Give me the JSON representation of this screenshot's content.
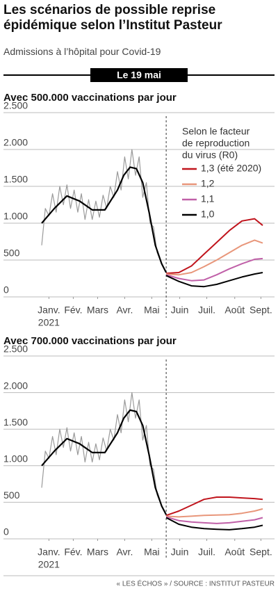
{
  "title": "Les scénarios de possible reprise épidémique selon l’Institut Pasteur",
  "subtitle": "Admissions à l’hôpital pour Covid-19",
  "banner": "Le 19 mai",
  "source": "« LES ÉCHOS » / SOURCE : INSTITUT PASTEUR",
  "chart_data": [
    {
      "type": "line",
      "title": "Avec 500.000 vaccinations par jour",
      "xlim": [
        0,
        245
      ],
      "ylim": [
        0,
        2500
      ],
      "yticks": [
        0,
        500,
        {
          "value": 1000,
          "label": "1.000"
        },
        {
          "value": 1500,
          "label": "1.500"
        },
        {
          "value": 2000,
          "label": "2.000"
        },
        {
          "value": 2500,
          "label": "2.500"
        }
      ],
      "xticks": [
        {
          "value": 8,
          "label": "Janv."
        },
        {
          "value": 35,
          "label": "Fév."
        },
        {
          "value": 62,
          "label": "Mars"
        },
        {
          "value": 92,
          "label": "Avr."
        },
        {
          "value": 122,
          "label": "Mai"
        },
        {
          "value": 153,
          "label": "Juin"
        },
        {
          "value": 183,
          "label": "Juil."
        },
        {
          "value": 214,
          "label": "Août"
        },
        {
          "value": 243,
          "label": "Sept."
        }
      ],
      "year": "2021",
      "marker_x": 138,
      "grid": true,
      "legend": true,
      "legend_title": [
        "Selon le facteur",
        "de reproduction",
        "du virus (R0)"
      ],
      "observed": [
        {
          "color": "#9a9a9a",
          "x": [
            0,
            4,
            8,
            12,
            16,
            20,
            24,
            28,
            32,
            36,
            40,
            44,
            48,
            52,
            56,
            60,
            64,
            68,
            72,
            76,
            80,
            84,
            88,
            92,
            96,
            100,
            104,
            108,
            112,
            116,
            120,
            124,
            128,
            132,
            136
          ],
          "values": [
            700,
            1200,
            1100,
            1400,
            1150,
            1500,
            1250,
            1520,
            1200,
            1450,
            1150,
            1400,
            1050,
            1320,
            1050,
            1300,
            1080,
            1380,
            1200,
            1500,
            1350,
            1700,
            1450,
            1900,
            1600,
            2000,
            1650,
            1900,
            1350,
            1550,
            1000,
            950,
            600,
            480,
            380
          ]
        },
        {
          "color": "#000000",
          "x": [
            0,
            14,
            28,
            42,
            56,
            70,
            84,
            91,
            98,
            105,
            112,
            119,
            126,
            133,
            138
          ],
          "values": [
            1000,
            1200,
            1370,
            1300,
            1180,
            1180,
            1450,
            1650,
            1760,
            1740,
            1550,
            1150,
            700,
            450,
            330
          ]
        }
      ],
      "series": [
        {
          "name": "1,3 (été 2020)",
          "color": "#c0141c",
          "x": [
            138,
            152,
            166,
            180,
            194,
            208,
            222,
            236,
            245
          ],
          "values": [
            320,
            330,
            420,
            580,
            740,
            900,
            1030,
            1060,
            970
          ]
        },
        {
          "name": "1,2",
          "color": "#e8967a",
          "x": [
            138,
            152,
            166,
            180,
            194,
            208,
            222,
            236,
            245
          ],
          "values": [
            310,
            300,
            330,
            410,
            500,
            600,
            700,
            770,
            730
          ]
        },
        {
          "name": "1,1",
          "color": "#c060a8",
          "x": [
            138,
            152,
            166,
            180,
            194,
            208,
            222,
            236,
            245
          ],
          "values": [
            300,
            250,
            220,
            230,
            300,
            380,
            450,
            510,
            520
          ]
        },
        {
          "name": "1,0",
          "color": "#000000",
          "x": [
            138,
            152,
            166,
            180,
            194,
            208,
            222,
            236,
            245
          ],
          "values": [
            290,
            210,
            150,
            140,
            170,
            220,
            270,
            310,
            330
          ]
        }
      ]
    },
    {
      "type": "line",
      "title": "Avec 700.000 vaccinations par jour",
      "xlim": [
        0,
        245
      ],
      "ylim": [
        0,
        2500
      ],
      "yticks": [
        0,
        500,
        {
          "value": 1000,
          "label": "1.000"
        },
        {
          "value": 1500,
          "label": "1.500"
        },
        {
          "value": 2000,
          "label": "2.000"
        },
        {
          "value": 2500,
          "label": "2.500"
        }
      ],
      "xticks": [
        {
          "value": 8,
          "label": "Janv."
        },
        {
          "value": 35,
          "label": "Fév."
        },
        {
          "value": 62,
          "label": "Mars"
        },
        {
          "value": 92,
          "label": "Avr."
        },
        {
          "value": 122,
          "label": "Mai"
        },
        {
          "value": 153,
          "label": "Juin"
        },
        {
          "value": 183,
          "label": "Juil."
        },
        {
          "value": 214,
          "label": "Août"
        },
        {
          "value": 243,
          "label": "Sept."
        }
      ],
      "year": "2021",
      "marker_x": 138,
      "grid": true,
      "legend": false,
      "observed": [
        {
          "color": "#9a9a9a",
          "x": [
            0,
            4,
            8,
            12,
            16,
            20,
            24,
            28,
            32,
            36,
            40,
            44,
            48,
            52,
            56,
            60,
            64,
            68,
            72,
            76,
            80,
            84,
            88,
            92,
            96,
            100,
            104,
            108,
            112,
            116,
            120,
            124,
            128,
            132,
            136
          ],
          "values": [
            700,
            1200,
            1100,
            1400,
            1150,
            1500,
            1250,
            1520,
            1200,
            1450,
            1150,
            1400,
            1050,
            1320,
            1050,
            1300,
            1080,
            1380,
            1200,
            1500,
            1350,
            1700,
            1450,
            1900,
            1600,
            2000,
            1650,
            1900,
            1350,
            1550,
            1000,
            950,
            600,
            480,
            380
          ]
        },
        {
          "color": "#000000",
          "x": [
            0,
            14,
            28,
            42,
            56,
            70,
            84,
            91,
            98,
            105,
            112,
            119,
            126,
            133,
            138
          ],
          "values": [
            1000,
            1200,
            1370,
            1300,
            1180,
            1180,
            1450,
            1650,
            1760,
            1740,
            1550,
            1150,
            700,
            450,
            330
          ]
        }
      ],
      "series": [
        {
          "color": "#c0141c",
          "x": [
            138,
            152,
            166,
            180,
            194,
            208,
            222,
            236,
            245
          ],
          "values": [
            320,
            380,
            460,
            540,
            570,
            570,
            560,
            550,
            540
          ]
        },
        {
          "color": "#e8967a",
          "x": [
            138,
            152,
            166,
            180,
            194,
            208,
            222,
            236,
            245
          ],
          "values": [
            310,
            300,
            310,
            320,
            325,
            330,
            350,
            380,
            410
          ]
        },
        {
          "color": "#c060a8",
          "x": [
            138,
            152,
            166,
            180,
            194,
            208,
            222,
            236,
            245
          ],
          "values": [
            300,
            250,
            230,
            220,
            210,
            220,
            240,
            260,
            290
          ]
        },
        {
          "color": "#000000",
          "x": [
            138,
            152,
            166,
            180,
            194,
            208,
            222,
            236,
            245
          ],
          "values": [
            290,
            200,
            160,
            140,
            130,
            125,
            140,
            160,
            185
          ]
        }
      ]
    }
  ]
}
